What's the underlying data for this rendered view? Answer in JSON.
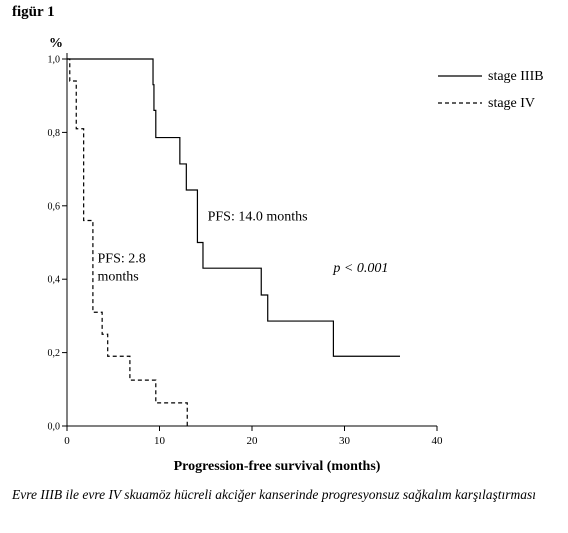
{
  "figure_label": "figür 1",
  "caption": "Evre IIIB ile evre IV skuamöz hücreli akciğer kanserinde progresyonsuz sağkalım karşılaştırması",
  "chart_data": {
    "type": "line",
    "step": true,
    "title": "",
    "xlabel": "Progression-free survival  (months)",
    "ylabel": "%",
    "xlim": [
      0,
      40
    ],
    "ylim": [
      0,
      1
    ],
    "x_ticks": [
      0,
      10,
      20,
      30,
      40
    ],
    "x_tick_labels": [
      "0",
      "10",
      "20",
      "30",
      "40"
    ],
    "y_ticks": [
      0,
      0.2,
      0.4,
      0.6,
      0.8,
      1.0
    ],
    "y_tick_labels": [
      "0,0",
      "0,2",
      "0,4",
      "0,6",
      "0,8",
      "1,0"
    ],
    "grid": false,
    "legend_position": "top-right",
    "series": [
      {
        "name": "stage IIIB",
        "line_style": "solid",
        "x": [
          0,
          9.2,
          9.3,
          9.4,
          9.6,
          12.2,
          12.9,
          14.1,
          14.7,
          21.0,
          21.7,
          28.8,
          36.0
        ],
        "y": [
          1.0,
          1.0,
          0.93,
          0.86,
          0.786,
          0.714,
          0.643,
          0.5,
          0.43,
          0.357,
          0.286,
          0.19,
          0.19
        ]
      },
      {
        "name": "stage IV",
        "line_style": "dashed",
        "x": [
          0,
          0.3,
          1.0,
          1.8,
          2.8,
          3.2,
          3.8,
          4.4,
          6.8,
          9.6,
          13.0
        ],
        "y": [
          1.0,
          0.94,
          0.81,
          0.56,
          0.31,
          0.31,
          0.25,
          0.19,
          0.125,
          0.063,
          0.0
        ]
      }
    ],
    "annotations": [
      {
        "id": "pfs-iiib",
        "lines": [
          "PFS: 14.0 months"
        ],
        "x": 15.2,
        "y": 0.56
      },
      {
        "id": "pfs-iv",
        "lines": [
          "PFS: 2.8",
          "months"
        ],
        "x": 3.3,
        "y": 0.445
      },
      {
        "id": "p-value",
        "lines": [
          "p < 0.001"
        ],
        "x": 28.8,
        "y": 0.42,
        "italic": true
      }
    ]
  }
}
